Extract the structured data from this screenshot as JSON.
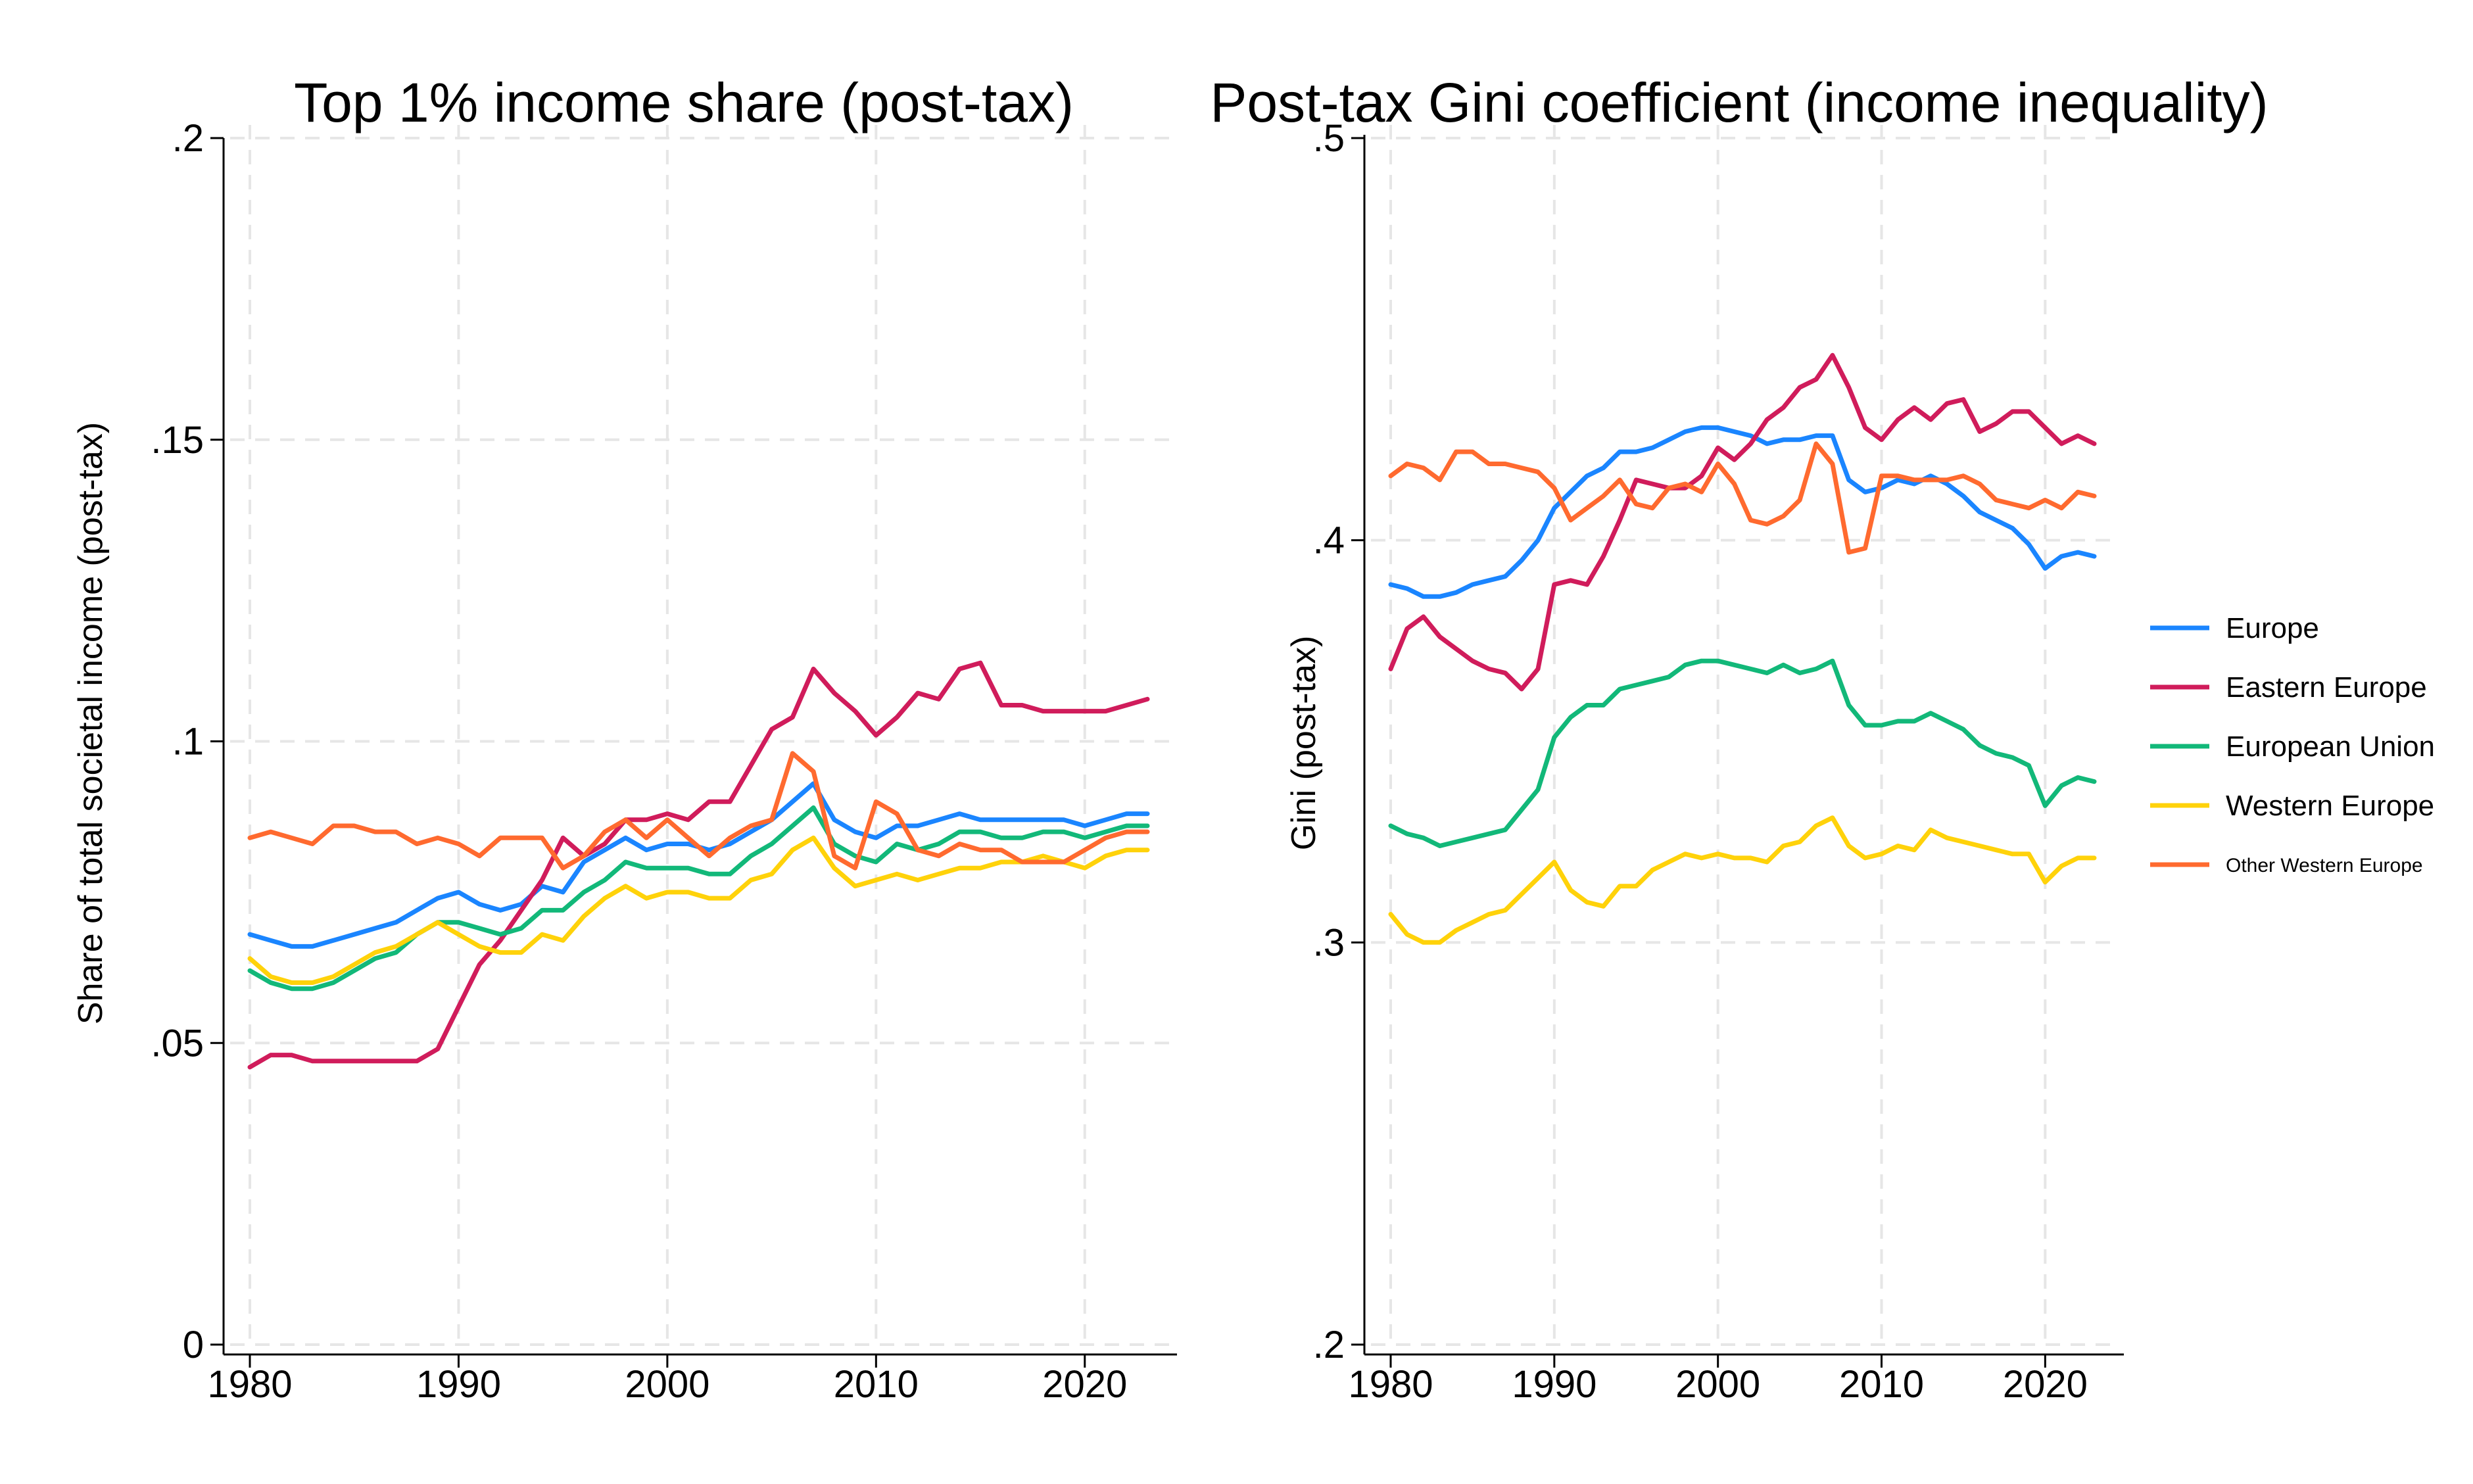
{
  "chart_data": [
    {
      "type": "line",
      "title": "Top 1% income share (post-tax)",
      "xlabel": "",
      "ylabel": "Share of total societal income (post-tax)",
      "xlim": [
        1980,
        2023
      ],
      "ylim": [
        0,
        0.2
      ],
      "xticks": [
        1980,
        1990,
        2000,
        2010,
        2020
      ],
      "xtick_labels": [
        "1980",
        "1990",
        "2000",
        "2010",
        "2020"
      ],
      "yticks": [
        0,
        0.05,
        0.1,
        0.15,
        0.2
      ],
      "ytick_labels": [
        "0",
        ".05",
        ".1",
        ".15",
        ".2"
      ],
      "grid": true,
      "x": [
        1980,
        1981,
        1982,
        1983,
        1984,
        1985,
        1986,
        1987,
        1988,
        1989,
        1990,
        1991,
        1992,
        1993,
        1994,
        1995,
        1996,
        1997,
        1998,
        1999,
        2000,
        2001,
        2002,
        2003,
        2004,
        2005,
        2006,
        2007,
        2008,
        2009,
        2010,
        2011,
        2012,
        2013,
        2014,
        2015,
        2016,
        2017,
        2018,
        2019,
        2020,
        2021,
        2022,
        2023
      ],
      "series": [
        {
          "name": "Europe",
          "color": "#1a85ff",
          "values": [
            0.068,
            0.067,
            0.066,
            0.066,
            0.067,
            0.068,
            0.069,
            0.07,
            0.072,
            0.074,
            0.075,
            0.073,
            0.072,
            0.073,
            0.076,
            0.075,
            0.08,
            0.082,
            0.084,
            0.082,
            0.083,
            0.083,
            0.082,
            0.083,
            0.085,
            0.087,
            0.09,
            0.093,
            0.087,
            0.085,
            0.084,
            0.086,
            0.086,
            0.087,
            0.088,
            0.087,
            0.087,
            0.087,
            0.087,
            0.087,
            0.086,
            0.087,
            0.088,
            0.088
          ]
        },
        {
          "name": "Eastern Europe",
          "color": "#d01c5b",
          "values": [
            0.046,
            0.048,
            0.048,
            0.047,
            0.047,
            0.047,
            0.047,
            0.047,
            0.047,
            0.049,
            0.056,
            0.063,
            0.067,
            0.072,
            0.077,
            0.084,
            0.081,
            0.083,
            0.087,
            0.087,
            0.088,
            0.087,
            0.09,
            0.09,
            0.096,
            0.102,
            0.104,
            0.112,
            0.108,
            0.105,
            0.101,
            0.104,
            0.108,
            0.107,
            0.112,
            0.113,
            0.106,
            0.106,
            0.105,
            0.105,
            0.105,
            0.105,
            0.106,
            0.107
          ]
        },
        {
          "name": "European Union",
          "color": "#12b879",
          "values": [
            0.062,
            0.06,
            0.059,
            0.059,
            0.06,
            0.062,
            0.064,
            0.065,
            0.068,
            0.07,
            0.07,
            0.069,
            0.068,
            0.069,
            0.072,
            0.072,
            0.075,
            0.077,
            0.08,
            0.079,
            0.079,
            0.079,
            0.078,
            0.078,
            0.081,
            0.083,
            0.086,
            0.089,
            0.083,
            0.081,
            0.08,
            0.083,
            0.082,
            0.083,
            0.085,
            0.085,
            0.084,
            0.084,
            0.085,
            0.085,
            0.084,
            0.085,
            0.086,
            0.086
          ]
        },
        {
          "name": "Western Europe",
          "color": "#ffd20a",
          "values": [
            0.064,
            0.061,
            0.06,
            0.06,
            0.061,
            0.063,
            0.065,
            0.066,
            0.068,
            0.07,
            0.068,
            0.066,
            0.065,
            0.065,
            0.068,
            0.067,
            0.071,
            0.074,
            0.076,
            0.074,
            0.075,
            0.075,
            0.074,
            0.074,
            0.077,
            0.078,
            0.082,
            0.084,
            0.079,
            0.076,
            0.077,
            0.078,
            0.077,
            0.078,
            0.079,
            0.079,
            0.08,
            0.08,
            0.081,
            0.08,
            0.079,
            0.081,
            0.082,
            0.082
          ]
        },
        {
          "name": "Other Western Europe",
          "color": "#ff6a2f",
          "values": [
            0.084,
            0.085,
            0.084,
            0.083,
            0.086,
            0.086,
            0.085,
            0.085,
            0.083,
            0.084,
            0.083,
            0.081,
            0.084,
            0.084,
            0.084,
            0.079,
            0.081,
            0.085,
            0.087,
            0.084,
            0.087,
            0.084,
            0.081,
            0.084,
            0.086,
            0.087,
            0.098,
            0.095,
            0.081,
            0.079,
            0.09,
            0.088,
            0.082,
            0.081,
            0.083,
            0.082,
            0.082,
            0.08,
            0.08,
            0.08,
            0.082,
            0.084,
            0.085,
            0.085
          ]
        }
      ]
    },
    {
      "type": "line",
      "title": "Post-tax Gini coefficient (income inequality)",
      "xlabel": "",
      "ylabel": "Gini (post-tax)",
      "xlim": [
        1980,
        2023
      ],
      "ylim": [
        0.2,
        0.5
      ],
      "xticks": [
        1980,
        1990,
        2000,
        2010,
        2020
      ],
      "xtick_labels": [
        "1980",
        "1990",
        "2000",
        "2010",
        "2020"
      ],
      "yticks": [
        0.2,
        0.3,
        0.4,
        0.5
      ],
      "ytick_labels": [
        ".2",
        ".3",
        ".4",
        ".5"
      ],
      "grid": true,
      "x": [
        1980,
        1981,
        1982,
        1983,
        1984,
        1985,
        1986,
        1987,
        1988,
        1989,
        1990,
        1991,
        1992,
        1993,
        1994,
        1995,
        1996,
        1997,
        1998,
        1999,
        2000,
        2001,
        2002,
        2003,
        2004,
        2005,
        2006,
        2007,
        2008,
        2009,
        2010,
        2011,
        2012,
        2013,
        2014,
        2015,
        2016,
        2017,
        2018,
        2019,
        2020,
        2021,
        2022,
        2023
      ],
      "series": [
        {
          "name": "Europe",
          "color": "#1a85ff",
          "values": [
            0.389,
            0.388,
            0.386,
            0.386,
            0.387,
            0.389,
            0.39,
            0.391,
            0.395,
            0.4,
            0.408,
            0.412,
            0.416,
            0.418,
            0.422,
            0.422,
            0.423,
            0.425,
            0.427,
            0.428,
            0.428,
            0.427,
            0.426,
            0.424,
            0.425,
            0.425,
            0.426,
            0.426,
            0.415,
            0.412,
            0.413,
            0.415,
            0.414,
            0.416,
            0.414,
            0.411,
            0.407,
            0.405,
            0.403,
            0.399,
            0.393,
            0.396,
            0.397,
            0.396
          ]
        },
        {
          "name": "Eastern Europe",
          "color": "#d01c5b",
          "values": [
            0.368,
            0.378,
            0.381,
            0.376,
            0.373,
            0.37,
            0.368,
            0.367,
            0.363,
            0.368,
            0.389,
            0.39,
            0.389,
            0.396,
            0.405,
            0.415,
            0.414,
            0.413,
            0.413,
            0.416,
            0.423,
            0.42,
            0.424,
            0.43,
            0.433,
            0.438,
            0.44,
            0.446,
            0.438,
            0.428,
            0.425,
            0.43,
            0.433,
            0.43,
            0.434,
            0.435,
            0.427,
            0.429,
            0.432,
            0.432,
            0.428,
            0.424,
            0.426,
            0.424
          ]
        },
        {
          "name": "European Union",
          "color": "#12b879",
          "values": [
            0.329,
            0.327,
            0.326,
            0.324,
            0.325,
            0.326,
            0.327,
            0.328,
            0.333,
            0.338,
            0.351,
            0.356,
            0.359,
            0.359,
            0.363,
            0.364,
            0.365,
            0.366,
            0.369,
            0.37,
            0.37,
            0.369,
            0.368,
            0.367,
            0.369,
            0.367,
            0.368,
            0.37,
            0.359,
            0.354,
            0.354,
            0.355,
            0.355,
            0.357,
            0.355,
            0.353,
            0.349,
            0.347,
            0.346,
            0.344,
            0.334,
            0.339,
            0.341,
            0.34
          ]
        },
        {
          "name": "Western Europe",
          "color": "#ffd20a",
          "values": [
            0.307,
            0.302,
            0.3,
            0.3,
            0.303,
            0.305,
            0.307,
            0.308,
            0.312,
            0.316,
            0.32,
            0.313,
            0.31,
            0.309,
            0.314,
            0.314,
            0.318,
            0.32,
            0.322,
            0.321,
            0.322,
            0.321,
            0.321,
            0.32,
            0.324,
            0.325,
            0.329,
            0.331,
            0.324,
            0.321,
            0.322,
            0.324,
            0.323,
            0.328,
            0.326,
            0.325,
            0.324,
            0.323,
            0.322,
            0.322,
            0.315,
            0.319,
            0.321,
            0.321
          ]
        },
        {
          "name": "Other Western Europe",
          "color": "#ff6a2f",
          "values": [
            0.416,
            0.419,
            0.418,
            0.415,
            0.422,
            0.422,
            0.419,
            0.419,
            0.418,
            0.417,
            0.413,
            0.405,
            0.408,
            0.411,
            0.415,
            0.409,
            0.408,
            0.413,
            0.414,
            0.412,
            0.419,
            0.414,
            0.405,
            0.404,
            0.406,
            0.41,
            0.424,
            0.419,
            0.397,
            0.398,
            0.416,
            0.416,
            0.415,
            0.415,
            0.415,
            0.416,
            0.414,
            0.41,
            0.409,
            0.408,
            0.41,
            0.408,
            0.412,
            0.411
          ]
        }
      ],
      "legend": {
        "placement": "right",
        "entries": [
          "Europe",
          "Eastern Europe",
          "European Union",
          "Western Europe",
          "Other Western Europe"
        ]
      }
    }
  ]
}
